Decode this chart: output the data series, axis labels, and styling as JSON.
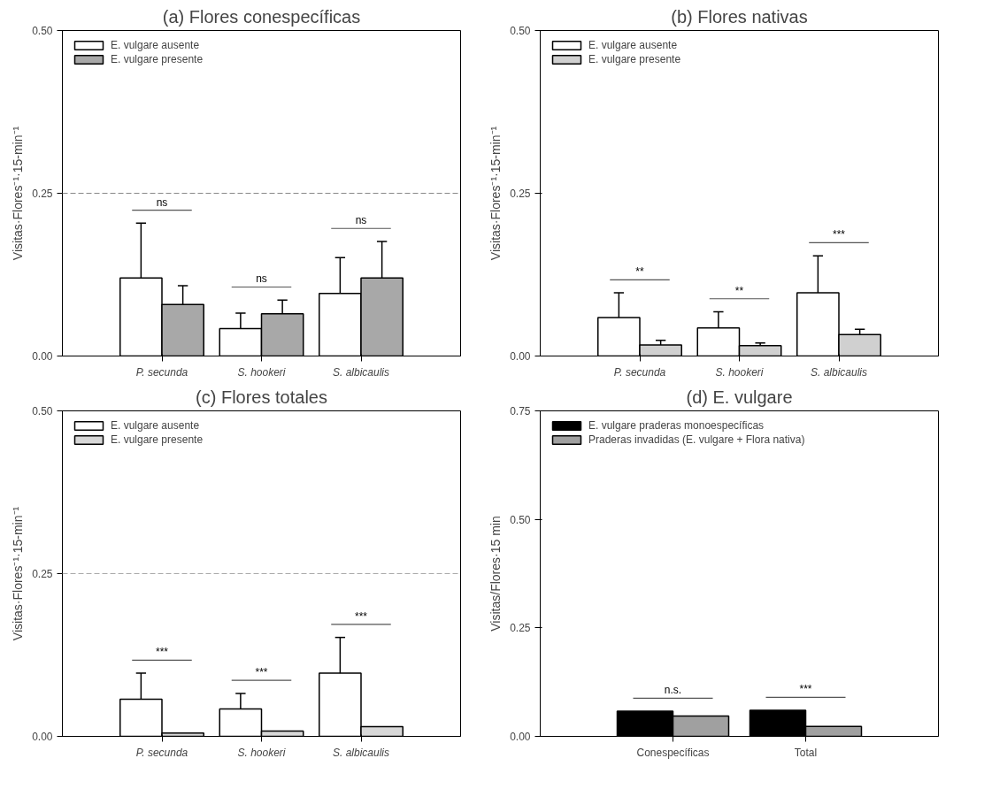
{
  "chart_data": [
    {
      "type": "bar",
      "title": "(a) Flores conespecíficas",
      "ylabel": "Visitas·Flores⁻¹·15-min⁻¹",
      "categories": [
        "P. secunda",
        "S. hookeri",
        "S. albicaulis"
      ],
      "ylim": [
        0,
        0.5
      ],
      "yticks": [
        {
          "value": 0,
          "label": "0.00"
        },
        {
          "value": 0.25,
          "label": "0.25"
        },
        {
          "value": 0.5,
          "label": "0.50"
        }
      ],
      "legend": "top left",
      "series": [
        {
          "name": "E. vulgare ausente",
          "color": "#ffffff",
          "values": [
            0.12,
            0.042,
            0.096
          ],
          "errors": [
            [
              0.12,
              0.204
            ],
            [
              0.042,
              0.066
            ],
            [
              0.096,
              0.151
            ]
          ]
        },
        {
          "name": "E. vulgare presente",
          "color": "#a8a8a8",
          "values": [
            0.079,
            0.065,
            0.12
          ],
          "errors": [
            [
              0.079,
              0.108
            ],
            [
              0.065,
              0.086
            ],
            [
              0.12,
              0.176
            ]
          ]
        }
      ],
      "ref_lines": [
        {
          "axis": "y",
          "value": 0.25,
          "color": "#888888",
          "line_style": "dashed"
        }
      ],
      "annotations": [
        "ns",
        "ns",
        "ns"
      ]
    },
    {
      "type": "bar",
      "title": "(b) Flores nativas",
      "ylabel": "Visitas·Flores⁻¹·15-min⁻¹",
      "categories": [
        "P. secunda",
        "S. hookeri",
        "S. albicaulis"
      ],
      "ylim": [
        0,
        0.5
      ],
      "yticks": [
        {
          "value": 0,
          "label": "0.00"
        },
        {
          "value": 0.25,
          "label": "0.25"
        },
        {
          "value": 0.5,
          "label": "0.50"
        }
      ],
      "legend": "top left",
      "series": [
        {
          "name": "E. vulgare ausente",
          "color": "#ffffff",
          "values": [
            0.059,
            0.043,
            0.097
          ],
          "errors": [
            [
              0.059,
              0.097
            ],
            [
              0.043,
              0.068
            ],
            [
              0.097,
              0.154
            ]
          ]
        },
        {
          "name": "E. vulgare presente",
          "color": "#d0d0d0",
          "values": [
            0.017,
            0.016,
            0.033
          ],
          "errors": [
            [
              0.017,
              0.024
            ],
            [
              0.016,
              0.02
            ],
            [
              0.033,
              0.041
            ]
          ]
        }
      ],
      "annotations": [
        "**",
        "**",
        "***"
      ]
    },
    {
      "type": "bar",
      "title": "(c) Flores totales",
      "ylabel": "Visitas·Flores⁻¹·15-min⁻¹",
      "categories": [
        "P. secunda",
        "S. hookeri",
        "S. albicaulis"
      ],
      "ylim": [
        0,
        0.5
      ],
      "yticks": [
        {
          "value": 0,
          "label": "0.00"
        },
        {
          "value": 0.25,
          "label": "0.25"
        },
        {
          "value": 0.5,
          "label": "0.50"
        }
      ],
      "legend": "top left",
      "series": [
        {
          "name": "E. vulgare ausente",
          "color": "#ffffff",
          "values": [
            0.057,
            0.042,
            0.097
          ],
          "errors": [
            [
              0.057,
              0.097
            ],
            [
              0.042,
              0.066
            ],
            [
              0.097,
              0.152
            ]
          ]
        },
        {
          "name": "E. vulgare presente",
          "color": "#d8d8d8",
          "values": [
            0.005,
            0.008,
            0.015
          ]
        }
      ],
      "ref_lines": [
        {
          "axis": "y",
          "value": 0.25,
          "color": "#aaaaaa",
          "line_style": "dashed"
        }
      ],
      "annotations": [
        "***",
        "***",
        "***"
      ]
    },
    {
      "type": "bar",
      "title": "(d) E. vulgare",
      "ylabel": "Visitas/Flores·15 min",
      "categories": [
        "Conespecíficas",
        "Total"
      ],
      "ylim": [
        0,
        0.75
      ],
      "yticks": [
        {
          "value": 0,
          "label": "0.00"
        },
        {
          "value": 0.25,
          "label": "0.25"
        },
        {
          "value": 0.5,
          "label": "0.50"
        },
        {
          "value": 0.75,
          "label": "0.75"
        }
      ],
      "legend": "top left",
      "series": [
        {
          "name": "E. vulgare praderas monoespecíficas",
          "color": "#000000",
          "values": [
            0.058,
            0.06
          ]
        },
        {
          "name": "Praderas invadidas (E. vulgare + Flora nativa)",
          "color": "#a0a0a0",
          "values": [
            0.047,
            0.023
          ]
        }
      ],
      "annotations": [
        "n.s.",
        "***"
      ]
    }
  ]
}
